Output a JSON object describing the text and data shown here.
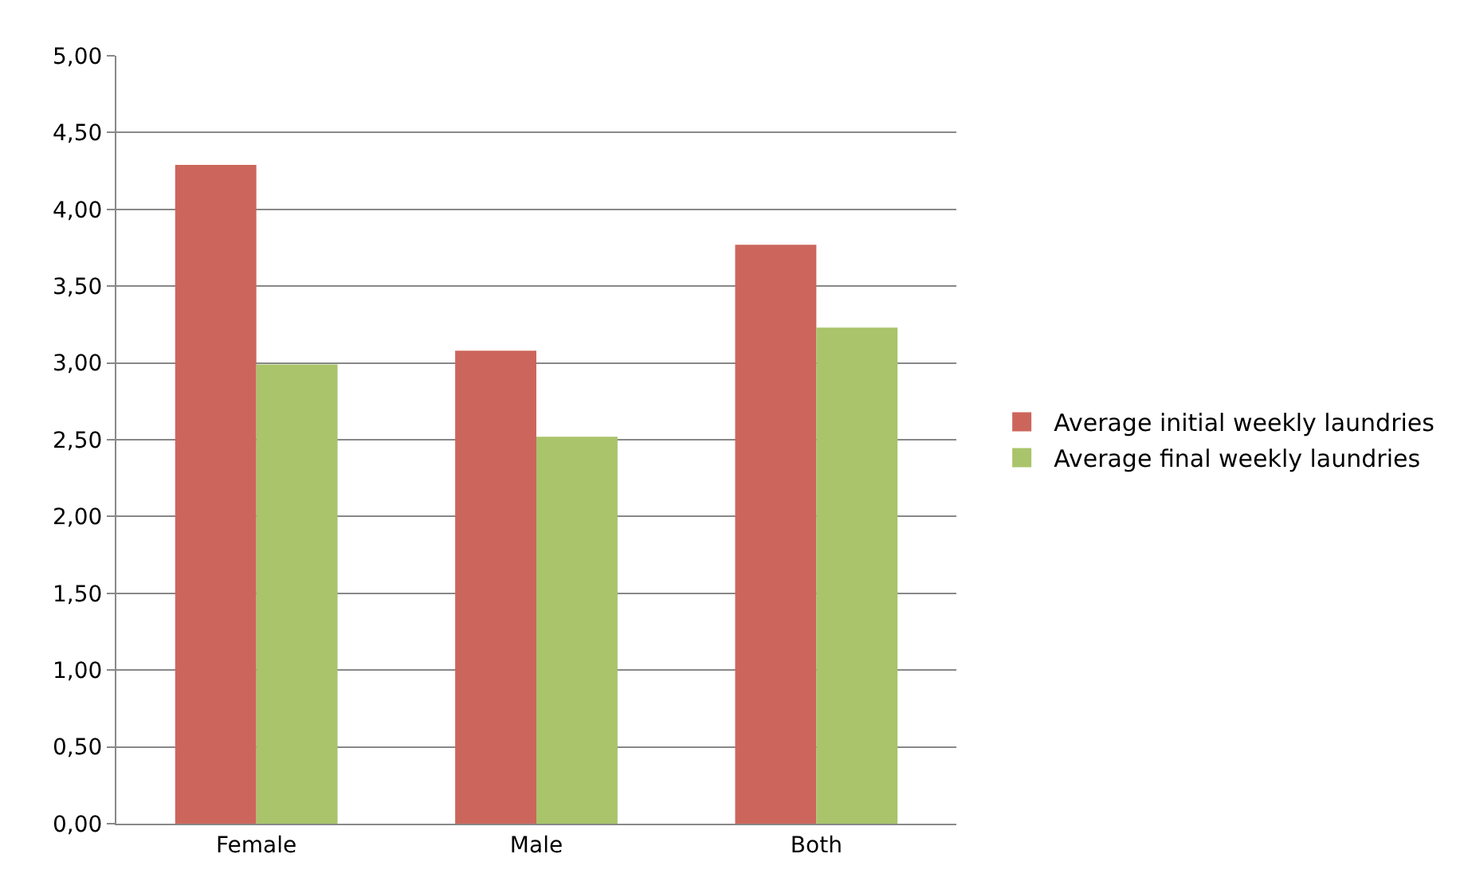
{
  "chart_data": {
    "type": "bar",
    "categories": [
      "Female",
      "Male",
      "Both"
    ],
    "series": [
      {
        "name": "Average initial weekly laundries",
        "color": "#cc665c",
        "values": [
          4.29,
          3.08,
          3.77
        ]
      },
      {
        "name": "Average final weekly laundries",
        "color": "#a9c46a",
        "values": [
          2.99,
          2.52,
          3.23
        ]
      }
    ],
    "ylim": [
      0,
      5
    ],
    "yticks": [
      {
        "value": 0,
        "label": "0,00"
      },
      {
        "value": 0.5,
        "label": "0,50"
      },
      {
        "value": 1,
        "label": "1,00"
      },
      {
        "value": 1.5,
        "label": "1,50"
      },
      {
        "value": 2,
        "label": "2,00"
      },
      {
        "value": 2.5,
        "label": "2,50"
      },
      {
        "value": 3,
        "label": "3,00"
      },
      {
        "value": 3.5,
        "label": "3,50"
      },
      {
        "value": 4,
        "label": "4,00"
      },
      {
        "value": 4.5,
        "label": "4,50"
      },
      {
        "value": 5,
        "label": "5,00"
      }
    ],
    "grid": "y",
    "legend": "right"
  }
}
